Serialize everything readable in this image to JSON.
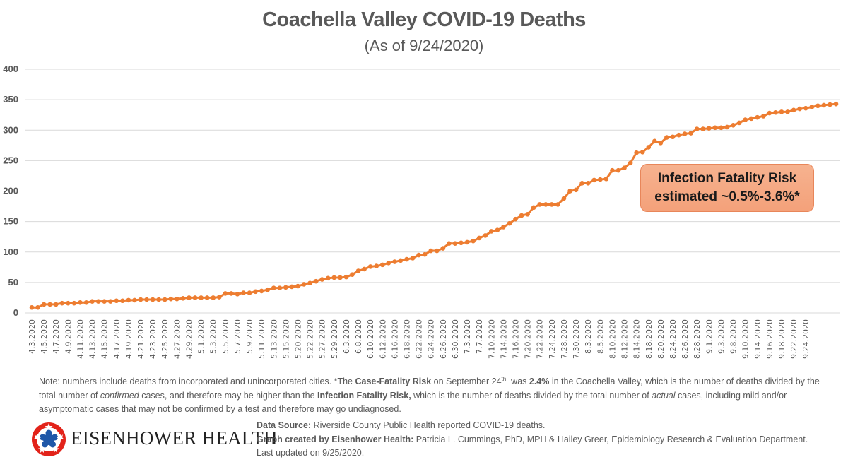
{
  "header": {
    "title": "Coachella Valley COVID-19 Deaths",
    "subtitle": "(As of 9/24/2020)"
  },
  "chart_data": {
    "type": "line",
    "title": "Coachella Valley COVID-19 Deaths",
    "subtitle": "(As of 9/24/2020)",
    "xlabel": "",
    "ylabel": "",
    "ylim": [
      0,
      400
    ],
    "yticks": [
      0,
      50,
      100,
      150,
      200,
      250,
      300,
      350,
      400
    ],
    "grid": true,
    "legend": "none",
    "line_color": "#ED7D31",
    "x_tick_labels": [
      "4.3.2020",
      "4.5.2020",
      "4.7.2020",
      "4.9.2020",
      "4.11.2020",
      "4.13.2020",
      "4.15.2020",
      "4.17.2020",
      "4.19.2020",
      "4.21.2020",
      "4.23.2020",
      "4.25.2020",
      "4.27.2020",
      "4.29.2020",
      "5.1.2020",
      "5.3.2020",
      "5.5.2020",
      "5.7.2020",
      "5.9.2020",
      "5.11.2020",
      "5.13.2020",
      "5.15.2020",
      "5.20.2020",
      "5.22.2020",
      "5.27.2020",
      "5.29.2020",
      "6.3.2020",
      "6.8.2020",
      "6.10.2020",
      "6.12.2020",
      "6.16.2020",
      "6.18.2020",
      "6.22.2020",
      "6.24.2020",
      "6.26.2020",
      "6.30.2020",
      "7.3.2020",
      "7.7.2020",
      "7.10.2020",
      "7.14.2020",
      "7.16.2020",
      "7.20.2020",
      "7.22.2020",
      "7.24.2020",
      "7.28.2020",
      "7.30.2020",
      "8.3.2020",
      "8.5.2020",
      "8.10.2020",
      "8.12.2020",
      "8.14.2020",
      "8.18.2020",
      "8.20.2020",
      "8.24.2020",
      "8.26.2020",
      "8.28.2020",
      "9.1.2020",
      "9.3.2020",
      "9.8.2020",
      "9.10.2020",
      "9.14.2020",
      "9.16.2020",
      "9.18.2020",
      "9.22.2020",
      "9.24.2020"
    ],
    "series": [
      {
        "name": "Deaths",
        "values": [
          9,
          9,
          14,
          14,
          14,
          16,
          16,
          16,
          17,
          17,
          19,
          19,
          19,
          19,
          20,
          20,
          21,
          21,
          22,
          22,
          22,
          22,
          22,
          23,
          23,
          24,
          25,
          25,
          25,
          25,
          25,
          26,
          32,
          32,
          31,
          33,
          33,
          35,
          36,
          38,
          41,
          41,
          42,
          43,
          44,
          47,
          49,
          52,
          55,
          57,
          58,
          58,
          59,
          63,
          69,
          72,
          76,
          77,
          79,
          82,
          84,
          86,
          88,
          90,
          95,
          96,
          102,
          102,
          106,
          114,
          114,
          115,
          116,
          118,
          123,
          127,
          134,
          136,
          141,
          147,
          154,
          160,
          162,
          173,
          178,
          178,
          178,
          178,
          188,
          200,
          202,
          213,
          213,
          218,
          219,
          220,
          234,
          234,
          238,
          246,
          263,
          264,
          272,
          282,
          279,
          288,
          289,
          292,
          294,
          295,
          302,
          302,
          303,
          304,
          304,
          305,
          308,
          312,
          317,
          319,
          321,
          323,
          328,
          329,
          330,
          330,
          333,
          335,
          336,
          338,
          340,
          341,
          342,
          343
        ]
      }
    ]
  },
  "callout": {
    "line1": "Infection Fatality Risk",
    "line2": "estimated ~0.5%-3.6%*"
  },
  "footnote": {
    "p1": "Note: numbers include deaths from incorporated and unincorporated cities. *The ",
    "b1": "Case-Fatality Risk",
    "p2": " on September 24",
    "sup": "th",
    "p3": "  was ",
    "b2": "2.4%",
    "p4": " in the Coachella Valley, which is the number of deaths divided by the total number of ",
    "i1": "confirmed",
    "p5": " cases, and therefore may be higher than the ",
    "b3": "Infection Fatality Risk,",
    "p6": " which is the number of deaths divided by the total number of ",
    "i2": "actual",
    "p7": " cases, including mild and/or asymptomatic cases that may ",
    "u1": "not",
    "p8": " be confirmed by a test and therefore may go undiagnosed."
  },
  "logo": {
    "name": "EISENHOWER HEALTH",
    "colors": {
      "red": "#E2231A",
      "blue": "#1F57A8"
    }
  },
  "source": {
    "label1": "Data Source:",
    "text1": " Riverside County Public Health reported COVID-19 deaths.",
    "label2": "Graph created by Eisenhower Health:",
    "text2": " Patricia L. Cummings, PhD, MPH & Hailey Greer, Epidemiology Research & Evaluation Department. Last updated on 9/25/2020."
  }
}
